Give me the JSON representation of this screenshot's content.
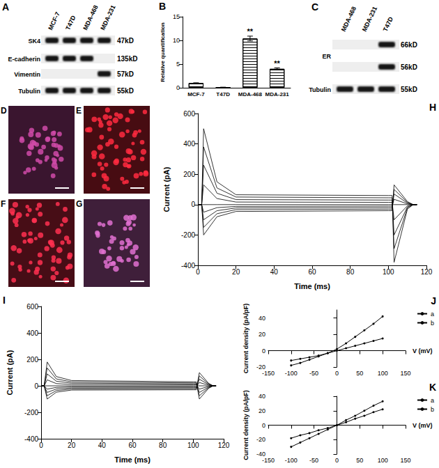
{
  "blots": [
    {
      "title": "A",
      "lanes": [
        "MCF-7",
        "T47D",
        "MDA-468",
        "MDA-231"
      ],
      "rows": [
        {
          "name": "SK4",
          "bands": [
            {
              "size": "47kD",
              "present": [
                true,
                true,
                true,
                true
              ]
            }
          ]
        },
        {
          "name": "E-cadherin",
          "bands": [
            {
              "size": "135kD",
              "present": [
                true,
                true,
                true,
                false
              ]
            }
          ]
        },
        {
          "name": "Vimentin",
          "bands": [
            {
              "size": "57kD",
              "present": [
                false,
                false,
                false,
                true
              ]
            }
          ]
        },
        {
          "name": "Tubulin",
          "bands": [
            {
              "size": "55kD",
              "present": [
                true,
                true,
                true,
                true
              ]
            }
          ]
        }
      ]
    },
    {
      "title": "C",
      "lanes": [
        "MDA-468",
        "MDA-231",
        "T47D"
      ],
      "rows": [
        {
          "name": "ER",
          "bands": [
            {
              "size": "66kD",
              "present": [
                false,
                false,
                true
              ]
            },
            {
              "size": "56kD",
              "present": [
                false,
                false,
                true
              ]
            }
          ]
        },
        {
          "name": "Tubulin",
          "bands": [
            {
              "size": "55kD",
              "present": [
                true,
                true,
                true
              ]
            }
          ]
        }
      ]
    }
  ],
  "micrographs": [
    {
      "title": "D",
      "color": "#d04aa8"
    },
    {
      "title": "E",
      "color": "#ff2a40"
    },
    {
      "title": "F",
      "color": "#ff3050"
    },
    {
      "title": "G",
      "color": "#e070d0"
    }
  ],
  "chart_data": [
    {
      "type": "bar",
      "title": "B",
      "y_label": "Relative quantification",
      "categories": [
        "MCF-7",
        "T47D",
        "MDA-468",
        "MDA-231"
      ],
      "values": [
        1,
        0.1,
        10.4,
        4.0
      ],
      "errors": [
        0.05,
        0.02,
        0.5,
        0.2
      ],
      "annotations": [
        null,
        null,
        "**",
        "**"
      ],
      "color": "#000000",
      "ylim": [
        0,
        15
      ],
      "yticks": [
        0,
        5,
        10,
        15
      ],
      "grid": false
    },
    {
      "type": "line",
      "title": "H",
      "x_label": "Time (ms)",
      "y_label": "Current (pA)",
      "x": [
        0,
        2,
        3,
        10,
        20,
        100,
        102,
        103,
        110,
        113,
        115
      ],
      "series": [
        {
          "color": "#000000",
          "marker": "none",
          "values": [
            0,
            0,
            500,
            150,
            65,
            60,
            60,
            -380,
            -30,
            0,
            0
          ]
        },
        {
          "color": "#000000",
          "marker": "none",
          "values": [
            0,
            0,
            380,
            110,
            50,
            45,
            45,
            -290,
            -22,
            0,
            0
          ]
        },
        {
          "color": "#000000",
          "marker": "none",
          "values": [
            0,
            0,
            260,
            75,
            33,
            30,
            30,
            -200,
            -15,
            0,
            0
          ]
        },
        {
          "color": "#000000",
          "marker": "none",
          "values": [
            0,
            0,
            130,
            40,
            17,
            15,
            15,
            -100,
            -8,
            0,
            0
          ]
        },
        {
          "color": "#000000",
          "marker": "none",
          "values": [
            0,
            0,
            0,
            0,
            0,
            0,
            0,
            0,
            0,
            0,
            0
          ]
        },
        {
          "color": "#000000",
          "marker": "none",
          "values": [
            0,
            0,
            -50,
            -20,
            -12,
            -10,
            -10,
            35,
            5,
            0,
            0
          ]
        },
        {
          "color": "#000000",
          "marker": "none",
          "values": [
            0,
            0,
            -100,
            -40,
            -22,
            -20,
            -20,
            70,
            10,
            0,
            0
          ]
        },
        {
          "color": "#000000",
          "marker": "none",
          "values": [
            0,
            0,
            -150,
            -60,
            -33,
            -30,
            -30,
            100,
            15,
            0,
            0
          ]
        },
        {
          "color": "#000000",
          "marker": "none",
          "values": [
            0,
            0,
            -200,
            -80,
            -45,
            -40,
            -40,
            130,
            20,
            0,
            0
          ]
        }
      ],
      "xlim": [
        0,
        120
      ],
      "xticks": [
        0,
        20,
        40,
        60,
        80,
        100,
        120
      ],
      "ylim": [
        -400,
        600
      ],
      "yticks": [
        -400,
        -200,
        0,
        200,
        400,
        600
      ],
      "grid": false
    },
    {
      "type": "line",
      "title": "I",
      "x_label": "Time (ms)",
      "y_label": "Current (pA)",
      "x": [
        0,
        2,
        4,
        10,
        20,
        100,
        102,
        104,
        110,
        113,
        115
      ],
      "series": [
        {
          "color": "#000000",
          "marker": "none",
          "values": [
            0,
            0,
            180,
            70,
            40,
            30,
            30,
            -100,
            -20,
            0,
            0
          ]
        },
        {
          "color": "#000000",
          "marker": "none",
          "values": [
            0,
            0,
            135,
            52,
            30,
            22,
            22,
            -75,
            -15,
            0,
            0
          ]
        },
        {
          "color": "#000000",
          "marker": "none",
          "values": [
            0,
            0,
            90,
            35,
            20,
            15,
            15,
            -50,
            -10,
            0,
            0
          ]
        },
        {
          "color": "#000000",
          "marker": "none",
          "values": [
            0,
            0,
            45,
            17,
            10,
            8,
            8,
            -25,
            -5,
            0,
            0
          ]
        },
        {
          "color": "#000000",
          "marker": "none",
          "values": [
            0,
            0,
            0,
            0,
            0,
            0,
            0,
            0,
            0,
            0,
            0
          ]
        },
        {
          "color": "#000000",
          "marker": "none",
          "values": [
            0,
            0,
            -25,
            -12,
            -8,
            -8,
            -8,
            25,
            5,
            0,
            0
          ]
        },
        {
          "color": "#000000",
          "marker": "none",
          "values": [
            0,
            0,
            -50,
            -24,
            -16,
            -15,
            -15,
            50,
            10,
            0,
            0
          ]
        },
        {
          "color": "#000000",
          "marker": "none",
          "values": [
            0,
            0,
            -75,
            -36,
            -24,
            -22,
            -22,
            75,
            15,
            0,
            0
          ]
        },
        {
          "color": "#000000",
          "marker": "none",
          "values": [
            0,
            0,
            -100,
            -48,
            -32,
            -30,
            -30,
            100,
            20,
            0,
            0
          ]
        }
      ],
      "xlim": [
        0,
        120
      ],
      "xticks": [
        0,
        20,
        40,
        60,
        80,
        100,
        120
      ],
      "ylim": [
        -400,
        600
      ],
      "yticks": [
        -400,
        -200,
        0,
        200,
        400,
        600
      ],
      "grid": false
    },
    {
      "type": "line",
      "title": "J",
      "x_label": "V (mV)",
      "y_label": "Current density (pA/pF)",
      "x": [
        -100,
        -80,
        -60,
        -40,
        -20,
        0,
        20,
        40,
        60,
        80,
        100
      ],
      "series": [
        {
          "name": "a",
          "color": "#000000",
          "marker": "circle",
          "values": [
            -18,
            -15,
            -11,
            -7,
            -3,
            2,
            9,
            17,
            25,
            33,
            42
          ]
        },
        {
          "name": "b",
          "color": "#000000",
          "marker": "circle",
          "values": [
            -12,
            -10,
            -8,
            -6,
            -3,
            0,
            3,
            6,
            9,
            12,
            15
          ]
        }
      ],
      "xlim": [
        -150,
        150
      ],
      "xticks": [
        -150,
        -100,
        -50,
        0,
        50,
        100,
        150
      ],
      "ylim": [
        -20,
        50
      ],
      "yticks": [
        -20,
        0,
        20,
        40
      ],
      "legend": "top-right",
      "grid": false
    },
    {
      "type": "line",
      "title": "K",
      "x_label": "V (mV)",
      "y_label": "Current density (pA/pF)",
      "x": [
        -100,
        -80,
        -60,
        -40,
        -20,
        0,
        20,
        40,
        60,
        80,
        100
      ],
      "series": [
        {
          "name": "a",
          "color": "#000000",
          "marker": "circle",
          "values": [
            -30,
            -24,
            -18,
            -12,
            -6,
            0,
            7,
            13,
            20,
            27,
            33
          ]
        },
        {
          "name": "b",
          "color": "#000000",
          "marker": "circle",
          "values": [
            -18,
            -14,
            -11,
            -7,
            -4,
            0,
            4,
            9,
            13,
            18,
            22
          ]
        }
      ],
      "xlim": [
        -150,
        150
      ],
      "xticks": [
        -150,
        -100,
        -50,
        0,
        50,
        100,
        150
      ],
      "ylim": [
        -40,
        40
      ],
      "yticks": [
        -40,
        -20,
        0,
        20,
        40
      ],
      "legend": "top-right",
      "grid": false
    }
  ]
}
